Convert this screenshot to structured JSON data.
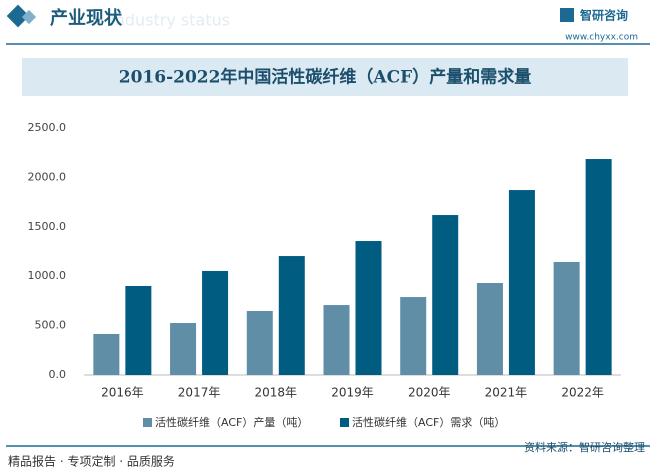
{
  "header": {
    "title": "产业现状",
    "subtitle": "Industry status",
    "brand": "智研咨询",
    "url": "www.chyxx.com"
  },
  "footer": {
    "left": "精品报告 · 专项定制 · 品质服务",
    "source": "资料来源：智研咨询整理"
  },
  "chart_data": {
    "type": "bar",
    "title": "2016-2022年中国活性碳纤维（ACF）产量和需求量",
    "categories": [
      "2016年",
      "2017年",
      "2018年",
      "2019年",
      "2020年",
      "2021年",
      "2022年"
    ],
    "series": [
      {
        "name": "活性碳纤维（ACF）产量（吨）",
        "color": "#5f8ea6",
        "values": [
          415,
          526,
          648,
          708,
          789,
          931,
          1144
        ]
      },
      {
        "name": "活性碳纤维（ACF）需求（吨）",
        "color": "#005c80",
        "values": [
          901,
          1053,
          1204,
          1356,
          1619,
          1872,
          2186
        ]
      }
    ],
    "ylim": [
      0,
      2500
    ],
    "yticks": [
      {
        "value": 0,
        "label": "0.0"
      },
      {
        "value": 500,
        "label": "500.0"
      },
      {
        "value": 1000,
        "label": "1000.0"
      },
      {
        "value": 1500,
        "label": "1500.0"
      },
      {
        "value": 2000,
        "label": "2000.0"
      },
      {
        "value": 2500,
        "label": "2500.0"
      }
    ],
    "grid": false
  }
}
